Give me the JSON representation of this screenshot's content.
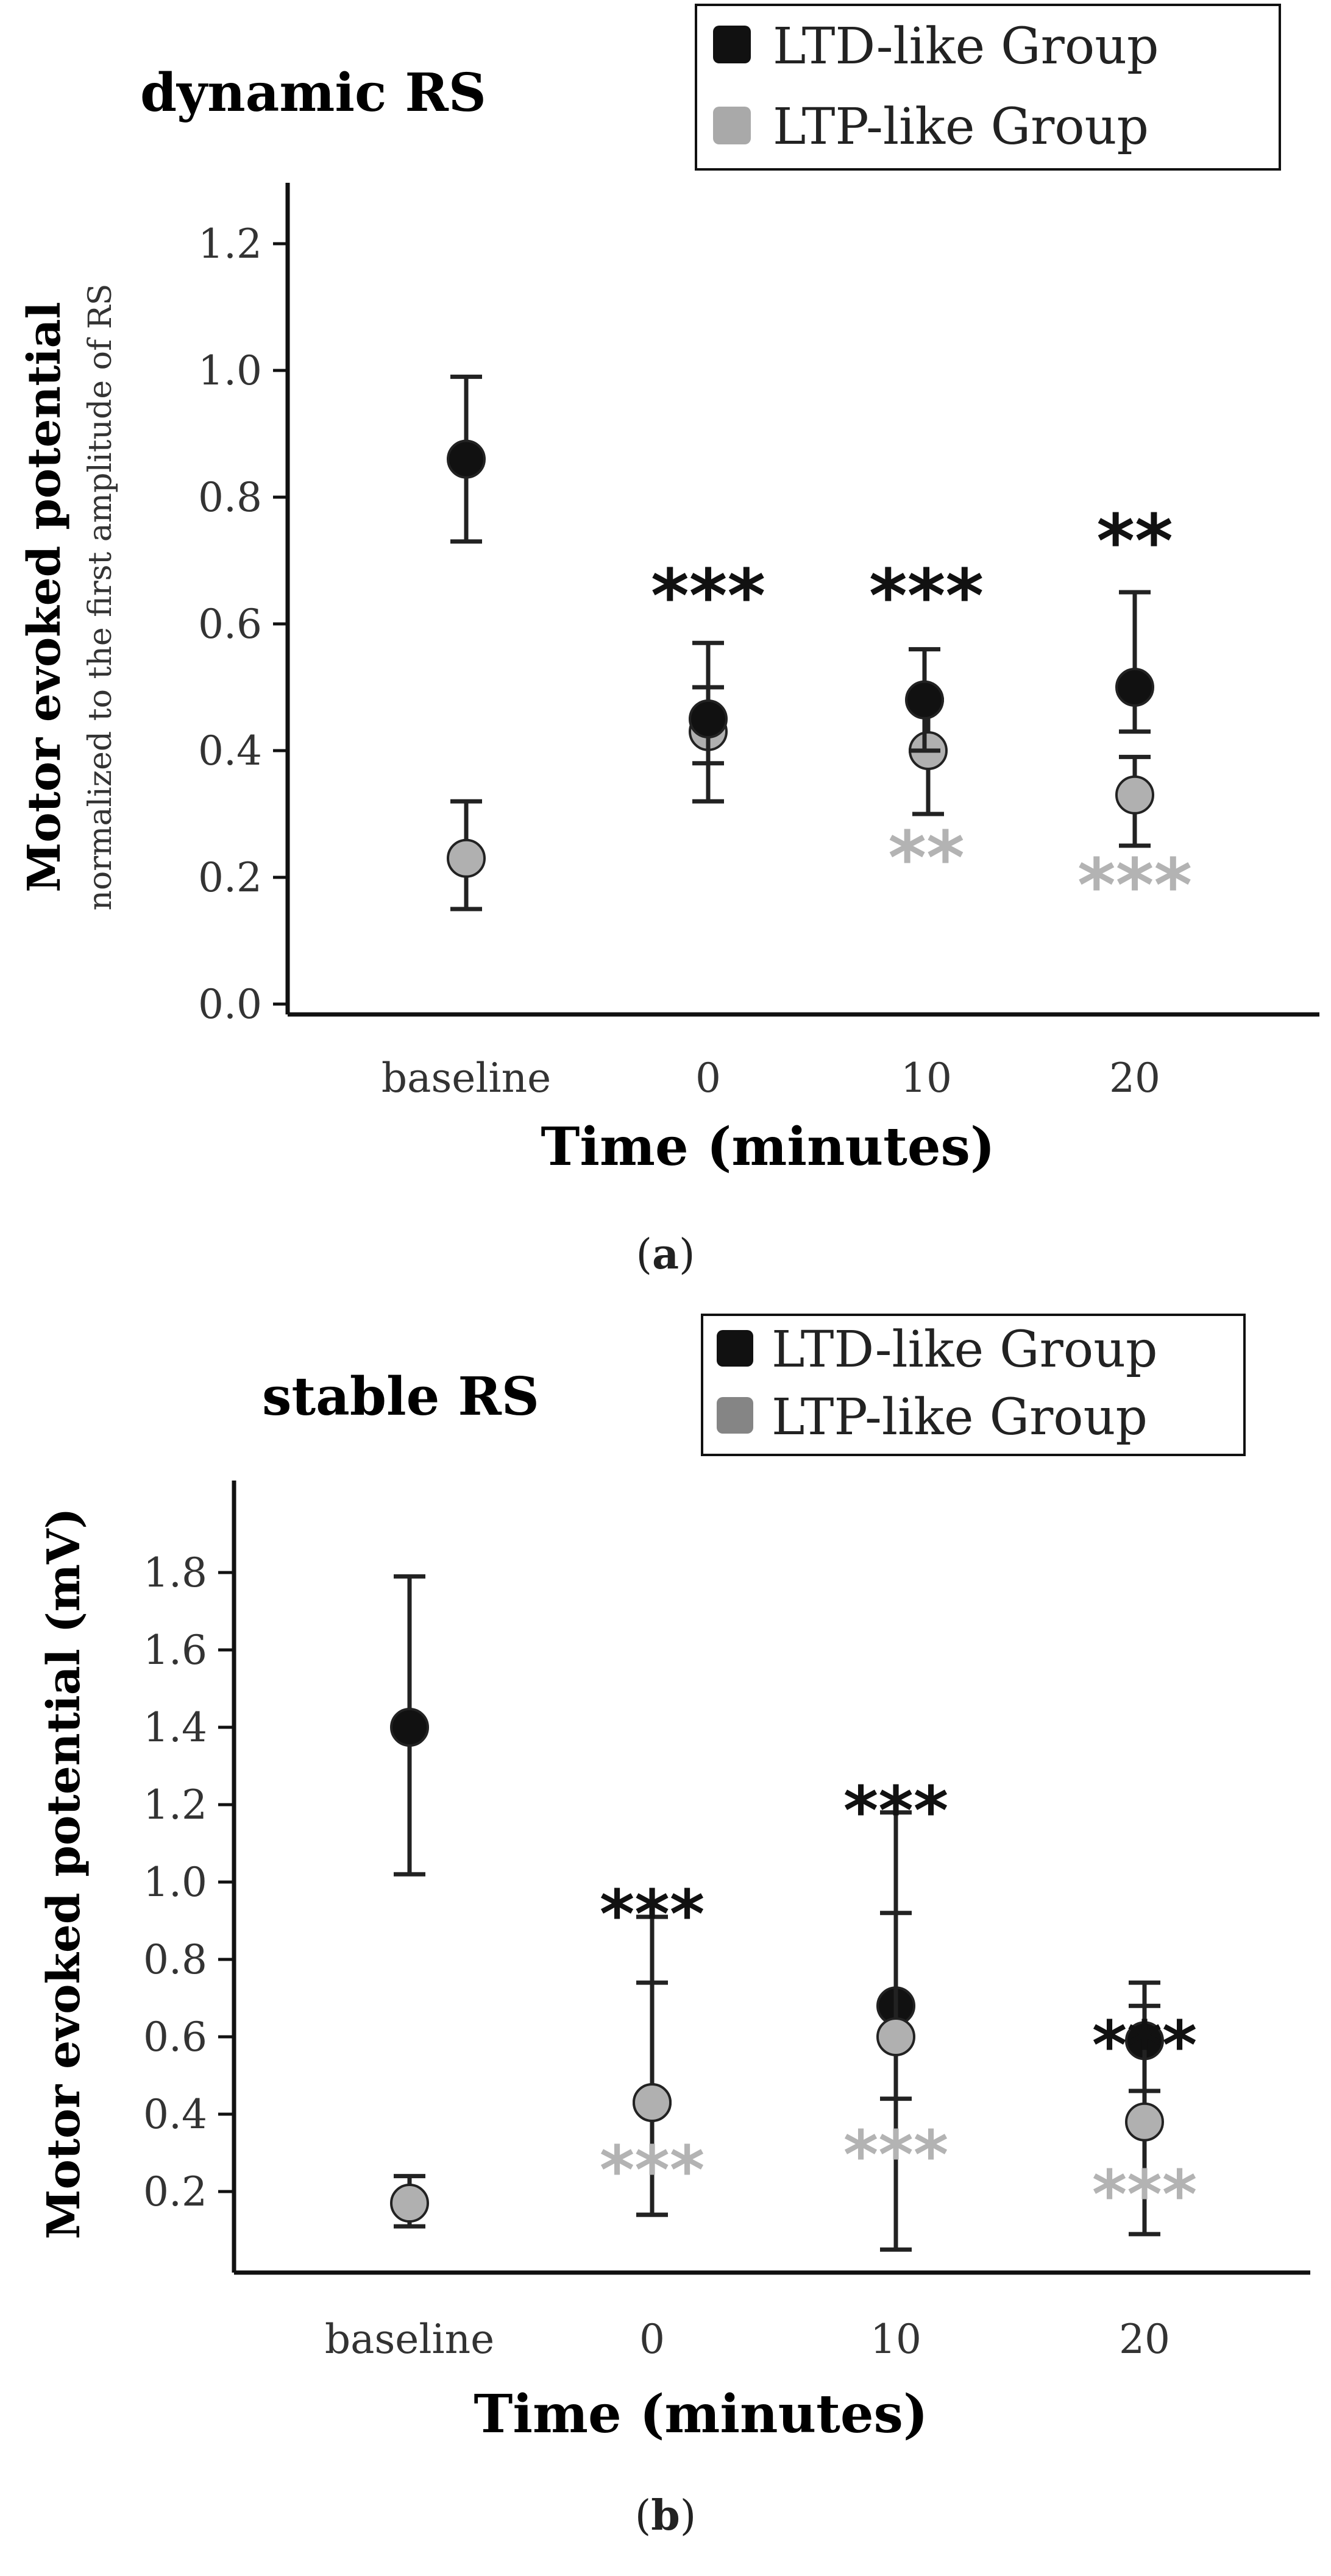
{
  "colors": {
    "ltd": "#111111",
    "ltp_a": "#a9a9a9",
    "ltp_b": "#858585",
    "ltp_marker": "#b0b0b0",
    "star_ltp": "#b3b3b3",
    "axis": "#111111"
  },
  "chart_data": [
    {
      "type": "scatter",
      "title": "dynamic RS",
      "panel_label": "a",
      "xlabel": "Time (minutes)",
      "ylabel": "Motor evoked potential",
      "ylabel_sub": "normalized to the first amplitude of RS",
      "categories": [
        "baseline",
        "0",
        "10",
        "20"
      ],
      "yticks": [
        "0.0",
        "0.2",
        "0.4",
        "0.6",
        "0.8",
        "1.0",
        "1.2"
      ],
      "ylim": [
        0,
        1.3
      ],
      "legend_position": "top-right",
      "series": [
        {
          "name": "LTD-like Group",
          "values": [
            0.86,
            0.45,
            0.48,
            0.5
          ],
          "err_low": [
            0.73,
            0.32,
            0.4,
            0.43
          ],
          "err_high": [
            0.99,
            0.57,
            0.56,
            0.65
          ],
          "stars": [
            "",
            "***",
            "***",
            "**"
          ]
        },
        {
          "name": "LTP-like Group",
          "values": [
            0.23,
            0.43,
            0.4,
            0.33
          ],
          "err_low": [
            0.15,
            0.38,
            0.3,
            0.25
          ],
          "err_high": [
            0.32,
            0.5,
            0.48,
            0.39
          ],
          "stars": [
            "",
            "",
            "**",
            "***"
          ]
        }
      ]
    },
    {
      "type": "scatter",
      "title": "stable RS",
      "panel_label": "b",
      "xlabel": "Time (minutes)",
      "ylabel": "Motor evoked potential (mV)",
      "categories": [
        "baseline",
        "0",
        "10",
        "20"
      ],
      "yticks": [
        "0.2",
        "0.4",
        "0.6",
        "0.8",
        "1.0",
        "1.2",
        "1.4",
        "1.6",
        "1.8"
      ],
      "ylim": [
        0,
        2.05
      ],
      "legend_position": "top-right",
      "series": [
        {
          "name": "LTD-like Group",
          "values": [
            1.4,
            0.43,
            0.68,
            0.59
          ],
          "err_low": [
            1.02,
            0.14,
            0.44,
            0.46
          ],
          "err_high": [
            1.79,
            0.74,
            0.92,
            0.74
          ],
          "stars": [
            "",
            "***",
            "***",
            "***"
          ]
        },
        {
          "name": "LTP-like Group",
          "values": [
            0.17,
            0.43,
            0.6,
            0.38
          ],
          "err_low": [
            0.11,
            0.14,
            0.05,
            0.09
          ],
          "err_high": [
            0.24,
            0.91,
            1.18,
            0.68
          ],
          "stars": [
            "",
            "***",
            "***",
            "***"
          ]
        }
      ]
    }
  ]
}
